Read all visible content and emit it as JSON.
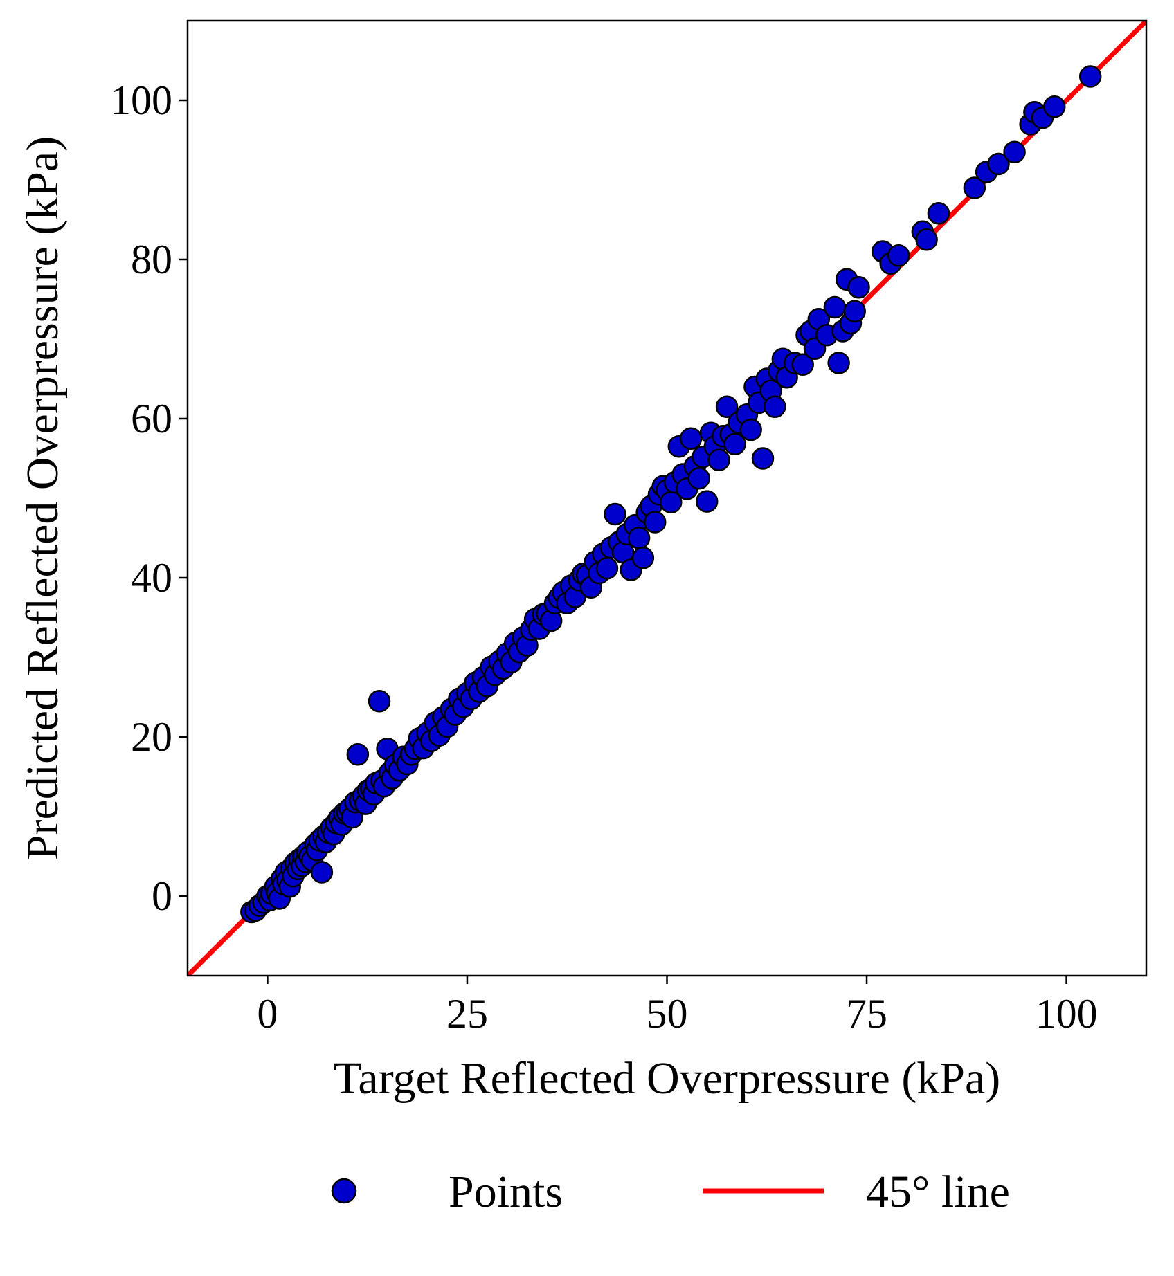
{
  "chart_data": {
    "type": "scatter",
    "title": "",
    "xlabel": "Target Reflected Overpressure (kPa)",
    "ylabel": "Predicted Reflected Overpressure (kPa)",
    "xlim": [
      -10,
      110
    ],
    "ylim": [
      -10,
      110
    ],
    "x_ticks": [
      0,
      25,
      50,
      75,
      100
    ],
    "y_ticks": [
      0,
      20,
      40,
      60,
      80,
      100
    ],
    "grid": false,
    "legend_position": "below plot, centered, two columns",
    "colors": {
      "points_fill": "#0000cc",
      "points_edge": "#000000",
      "line": "#ff0000"
    },
    "legend": [
      {
        "label": "Points",
        "kind": "marker"
      },
      {
        "label": "45° line",
        "kind": "line"
      }
    ],
    "series": [
      {
        "name": "Points",
        "kind": "scatter",
        "points": [
          [
            -2,
            -2
          ],
          [
            -1.5,
            -1.8
          ],
          [
            -1,
            -1.2
          ],
          [
            -0.5,
            -0.8
          ],
          [
            0,
            0
          ],
          [
            0.3,
            -0.5
          ],
          [
            0.5,
            0.3
          ],
          [
            1,
            1.2
          ],
          [
            1.2,
            0.4
          ],
          [
            1.5,
            -0.3
          ],
          [
            1.8,
            2.2
          ],
          [
            2,
            1.5
          ],
          [
            2.3,
            3
          ],
          [
            2.5,
            2
          ],
          [
            2.8,
            1.2
          ],
          [
            3,
            3.5
          ],
          [
            3.2,
            2.5
          ],
          [
            3.5,
            4.2
          ],
          [
            3.8,
            3.4
          ],
          [
            4,
            4.6
          ],
          [
            4.3,
            3.8
          ],
          [
            4.5,
            5
          ],
          [
            4.8,
            4.3
          ],
          [
            5,
            5.5
          ],
          [
            5.3,
            5
          ],
          [
            5.6,
            4.5
          ],
          [
            6,
            6.5
          ],
          [
            6.2,
            5.8
          ],
          [
            6.5,
            7
          ],
          [
            6.8,
            3
          ],
          [
            7,
            7.5
          ],
          [
            7.3,
            6.8
          ],
          [
            7.6,
            8
          ],
          [
            8,
            8.6
          ],
          [
            8.3,
            7.8
          ],
          [
            8.6,
            9.2
          ],
          [
            9,
            9.8
          ],
          [
            9.3,
            9
          ],
          [
            9.6,
            10.4
          ],
          [
            10,
            10.5
          ],
          [
            10.3,
            11
          ],
          [
            10.6,
            9.9
          ],
          [
            11,
            11.8
          ],
          [
            11.3,
            17.8
          ],
          [
            11.6,
            12
          ],
          [
            12,
            12.6
          ],
          [
            12.3,
            11.6
          ],
          [
            12.6,
            13.3
          ],
          [
            13,
            13.5
          ],
          [
            13.3,
            12.8
          ],
          [
            13.6,
            14.2
          ],
          [
            14,
            24.5
          ],
          [
            14.3,
            14.5
          ],
          [
            14.6,
            13.8
          ],
          [
            15,
            18.5
          ],
          [
            15.3,
            15.5
          ],
          [
            15.6,
            14.8
          ],
          [
            16,
            16.5
          ],
          [
            16.5,
            15.8
          ],
          [
            17,
            17.5
          ],
          [
            17.5,
            16.6
          ],
          [
            18,
            17.8
          ],
          [
            18.5,
            18.5
          ],
          [
            19,
            19.8
          ],
          [
            19.5,
            18.6
          ],
          [
            20,
            20.5
          ],
          [
            20.5,
            19.5
          ],
          [
            21,
            21.8
          ],
          [
            21.5,
            20.2
          ],
          [
            22,
            22.5
          ],
          [
            22.5,
            21.3
          ],
          [
            23,
            23.5
          ],
          [
            23.5,
            22.8
          ],
          [
            24,
            24.8
          ],
          [
            24.5,
            23.8
          ],
          [
            25,
            25.5
          ],
          [
            25.5,
            24.8
          ],
          [
            26,
            26.8
          ],
          [
            26.5,
            25.7
          ],
          [
            27,
            27.5
          ],
          [
            27.5,
            26.4
          ],
          [
            28,
            28.8
          ],
          [
            28.5,
            27.8
          ],
          [
            29,
            29.5
          ],
          [
            29.5,
            28.6
          ],
          [
            30,
            30.5
          ],
          [
            30.5,
            29.4
          ],
          [
            31,
            31.8
          ],
          [
            31.5,
            30.7
          ],
          [
            32,
            32.5
          ],
          [
            32.5,
            31.5
          ],
          [
            33,
            33.5
          ],
          [
            33.5,
            34.8
          ],
          [
            34,
            33.6
          ],
          [
            34.5,
            35.4
          ],
          [
            35,
            35.5
          ],
          [
            35.5,
            34.6
          ],
          [
            36,
            36.8
          ],
          [
            36.5,
            37.5
          ],
          [
            37,
            38.2
          ],
          [
            37.5,
            36.8
          ],
          [
            38,
            39
          ],
          [
            38.5,
            37.6
          ],
          [
            39,
            39.7
          ],
          [
            39.5,
            40.5
          ],
          [
            40,
            40.3
          ],
          [
            40.5,
            38.8
          ],
          [
            41,
            42
          ],
          [
            41.5,
            40.6
          ],
          [
            42,
            43
          ],
          [
            42.5,
            41.2
          ],
          [
            43,
            43.8
          ],
          [
            43.5,
            48
          ],
          [
            44,
            44.5
          ],
          [
            44.5,
            43.2
          ],
          [
            45,
            45.5
          ],
          [
            45.5,
            41
          ],
          [
            46,
            46.6
          ],
          [
            46.5,
            45
          ],
          [
            47,
            42.5
          ],
          [
            47.5,
            48.2
          ],
          [
            48,
            49
          ],
          [
            48.5,
            47
          ],
          [
            49,
            50.5
          ],
          [
            49.5,
            51.5
          ],
          [
            50,
            51
          ],
          [
            50.5,
            49.5
          ],
          [
            51,
            52
          ],
          [
            51.5,
            56.5
          ],
          [
            52,
            53
          ],
          [
            52.5,
            51.2
          ],
          [
            53,
            57.5
          ],
          [
            53.5,
            54
          ],
          [
            54,
            52.5
          ],
          [
            54.5,
            55.2
          ],
          [
            55,
            49.6
          ],
          [
            55.5,
            58.2
          ],
          [
            56,
            56.5
          ],
          [
            56.5,
            54.8
          ],
          [
            57,
            57.8
          ],
          [
            57.5,
            61.5
          ],
          [
            58,
            58
          ],
          [
            58.5,
            56.8
          ],
          [
            59,
            59.5
          ],
          [
            60,
            60.5
          ],
          [
            60.5,
            58.6
          ],
          [
            61,
            64
          ],
          [
            61.5,
            62
          ],
          [
            62,
            55
          ],
          [
            62.5,
            65
          ],
          [
            63,
            63.5
          ],
          [
            63.5,
            61.5
          ],
          [
            64,
            66
          ],
          [
            64.5,
            67.5
          ],
          [
            65,
            65.2
          ],
          [
            66,
            67
          ],
          [
            67,
            66.8
          ],
          [
            67.5,
            70.5
          ],
          [
            68,
            71
          ],
          [
            68.5,
            68.8
          ],
          [
            69,
            72.5
          ],
          [
            70,
            70.5
          ],
          [
            71,
            74
          ],
          [
            71.5,
            67
          ],
          [
            72,
            71
          ],
          [
            72.5,
            77.5
          ],
          [
            73,
            72
          ],
          [
            73.5,
            73.5
          ],
          [
            74,
            76.5
          ],
          [
            77,
            81
          ],
          [
            78,
            79.5
          ],
          [
            79,
            80.5
          ],
          [
            82,
            83.5
          ],
          [
            82.5,
            82.5
          ],
          [
            84,
            85.8
          ],
          [
            88.5,
            89
          ],
          [
            90,
            91
          ],
          [
            91.5,
            92
          ],
          [
            93.5,
            93.5
          ],
          [
            95.5,
            97
          ],
          [
            96,
            98.5
          ],
          [
            97,
            97.8
          ],
          [
            98.5,
            99.2
          ],
          [
            103,
            103
          ]
        ]
      },
      {
        "name": "45° line",
        "kind": "line",
        "points": [
          [
            -10,
            -10
          ],
          [
            110,
            110
          ]
        ]
      }
    ]
  }
}
